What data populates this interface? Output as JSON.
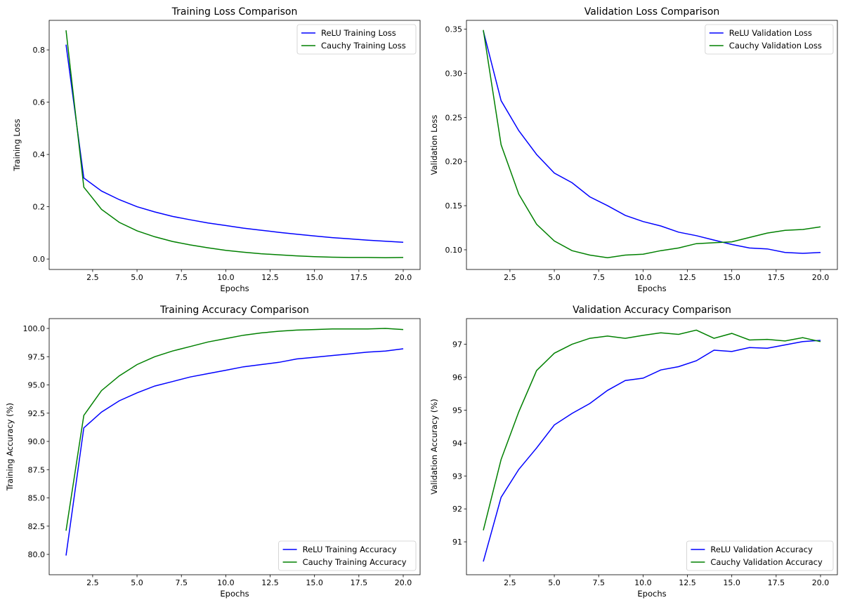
{
  "chart_data": [
    {
      "type": "line",
      "title": "Training Loss Comparison",
      "xlabel": "Epochs",
      "ylabel": "Training Loss",
      "x": [
        1,
        2,
        3,
        4,
        5,
        6,
        7,
        8,
        9,
        10,
        11,
        12,
        13,
        14,
        15,
        16,
        17,
        18,
        19,
        20
      ],
      "xlim": [
        0.05,
        20.95
      ],
      "ylim": [
        -0.04,
        0.913
      ],
      "xticks": [
        "2.5",
        "5.0",
        "7.5",
        "10.0",
        "12.5",
        "15.0",
        "17.5",
        "20.0"
      ],
      "yticks": [
        "0.0",
        "0.2",
        "0.4",
        "0.6",
        "0.8"
      ],
      "legend": "upper right",
      "grid": false,
      "series": [
        {
          "name": "ReLU Training Loss",
          "color": "#0000ff",
          "values": [
            0.82,
            0.31,
            0.26,
            0.227,
            0.2,
            0.18,
            0.163,
            0.15,
            0.138,
            0.128,
            0.118,
            0.11,
            0.102,
            0.095,
            0.088,
            0.082,
            0.077,
            0.072,
            0.068,
            0.064
          ]
        },
        {
          "name": "Cauchy Training Loss",
          "color": "#008000",
          "values": [
            0.875,
            0.275,
            0.19,
            0.14,
            0.108,
            0.085,
            0.067,
            0.054,
            0.043,
            0.033,
            0.026,
            0.02,
            0.016,
            0.012,
            0.009,
            0.007,
            0.006,
            0.006,
            0.005,
            0.006
          ]
        }
      ]
    },
    {
      "type": "line",
      "title": "Validation Loss Comparison",
      "xlabel": "Epochs",
      "ylabel": "Validation Loss",
      "x": [
        1,
        2,
        3,
        4,
        5,
        6,
        7,
        8,
        9,
        10,
        11,
        12,
        13,
        14,
        15,
        16,
        17,
        18,
        19,
        20
      ],
      "xlim": [
        0.05,
        20.95
      ],
      "ylim": [
        0.0777,
        0.36
      ],
      "xticks": [
        "2.5",
        "5.0",
        "7.5",
        "10.0",
        "12.5",
        "15.0",
        "17.5",
        "20.0"
      ],
      "yticks": [
        "0.10",
        "0.15",
        "0.20",
        "0.25",
        "0.30",
        "0.35"
      ],
      "legend": "upper right",
      "grid": false,
      "series": [
        {
          "name": "ReLU Validation Loss",
          "color": "#0000ff",
          "values": [
            0.348,
            0.269,
            0.235,
            0.208,
            0.187,
            0.176,
            0.16,
            0.15,
            0.139,
            0.132,
            0.127,
            0.12,
            0.116,
            0.111,
            0.106,
            0.102,
            0.101,
            0.097,
            0.096,
            0.097
          ]
        },
        {
          "name": "Cauchy Validation Loss",
          "color": "#008000",
          "values": [
            0.349,
            0.219,
            0.163,
            0.129,
            0.11,
            0.099,
            0.094,
            0.091,
            0.094,
            0.095,
            0.099,
            0.102,
            0.107,
            0.108,
            0.109,
            0.114,
            0.119,
            0.122,
            0.123,
            0.126
          ]
        }
      ]
    },
    {
      "type": "line",
      "title": "Training Accuracy Comparison",
      "xlabel": "Epochs",
      "ylabel": "Training Accuracy (%)",
      "x": [
        1,
        2,
        3,
        4,
        5,
        6,
        7,
        8,
        9,
        10,
        11,
        12,
        13,
        14,
        15,
        16,
        17,
        18,
        19,
        20
      ],
      "xlim": [
        0.05,
        20.95
      ],
      "ylim": [
        78.2,
        100.87
      ],
      "xticks": [
        "2.5",
        "5.0",
        "7.5",
        "10.0",
        "12.5",
        "15.0",
        "17.5",
        "20.0"
      ],
      "yticks": [
        "80.0",
        "82.5",
        "85.0",
        "87.5",
        "90.0",
        "92.5",
        "95.0",
        "97.5",
        "100.0"
      ],
      "legend": "lower right",
      "grid": false,
      "series": [
        {
          "name": "ReLU Training Accuracy",
          "color": "#0000ff",
          "values": [
            79.9,
            91.2,
            92.6,
            93.6,
            94.3,
            94.9,
            95.3,
            95.7,
            96.0,
            96.3,
            96.6,
            96.8,
            97.0,
            97.3,
            97.45,
            97.6,
            97.75,
            97.9,
            98.0,
            98.2
          ]
        },
        {
          "name": "Cauchy Training Accuracy",
          "color": "#008000",
          "values": [
            82.1,
            92.3,
            94.5,
            95.8,
            96.8,
            97.5,
            98.0,
            98.4,
            98.8,
            99.1,
            99.4,
            99.6,
            99.75,
            99.85,
            99.9,
            99.95,
            99.95,
            99.95,
            100.0,
            99.9
          ]
        }
      ]
    },
    {
      "type": "line",
      "title": "Validation Accuracy Comparison",
      "xlabel": "Epochs",
      "ylabel": "Validation Accuracy (%)",
      "x": [
        1,
        2,
        3,
        4,
        5,
        6,
        7,
        8,
        9,
        10,
        11,
        12,
        13,
        14,
        15,
        16,
        17,
        18,
        19,
        20
      ],
      "xlim": [
        0.05,
        20.95
      ],
      "ylim": [
        90.0,
        97.78
      ],
      "xticks": [
        "2.5",
        "5.0",
        "7.5",
        "10.0",
        "12.5",
        "15.0",
        "17.5",
        "20.0"
      ],
      "yticks": [
        "91",
        "92",
        "93",
        "94",
        "95",
        "96",
        "97"
      ],
      "legend": "lower right",
      "grid": false,
      "series": [
        {
          "name": "ReLU Validation Accuracy",
          "color": "#0000ff",
          "values": [
            90.4,
            92.35,
            93.2,
            93.85,
            94.55,
            94.9,
            95.2,
            95.6,
            95.9,
            95.97,
            96.22,
            96.32,
            96.5,
            96.82,
            96.78,
            96.9,
            96.88,
            96.98,
            97.08,
            97.12
          ]
        },
        {
          "name": "Cauchy Validation Accuracy",
          "color": "#008000",
          "values": [
            91.35,
            93.5,
            94.95,
            96.2,
            96.73,
            97.0,
            97.18,
            97.25,
            97.18,
            97.27,
            97.35,
            97.3,
            97.43,
            97.18,
            97.33,
            97.13,
            97.15,
            97.1,
            97.2,
            97.08
          ]
        }
      ]
    }
  ]
}
